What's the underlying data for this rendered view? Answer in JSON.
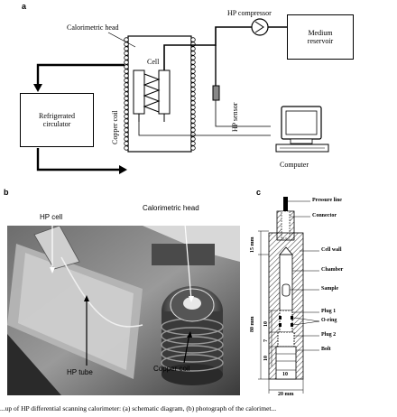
{
  "panel_a": {
    "letter": "a",
    "calorimetric_head": "Calorimetric head",
    "hp_compressor": "HP compressor",
    "medium_reservoir_line1": "Medium",
    "medium_reservoir_line2": "reservoir",
    "cell": "Cell",
    "hp_sensor": "HP sensor",
    "copper_coil": "Copper coil",
    "refrigerated_line1": "Refrigerated",
    "refrigerated_line2": "circulator",
    "computer": "Computer"
  },
  "panel_b": {
    "letter": "b",
    "hp_cell": "HP cell",
    "calorimetric_head": "Calorimetric head",
    "hp_tube": "HP tube",
    "copper_coil": "Copper coil"
  },
  "panel_c": {
    "letter": "c",
    "pressure_line": "Pressure line",
    "connector": "Connector",
    "cell_wall": "Cell wall",
    "chamber": "Chamber",
    "sample": "Sample",
    "plug1": "Plug 1",
    "oring": "O-ring",
    "plug2": "Plug 2",
    "bolt": "Bolt",
    "dim_15": "15 mm",
    "dim_80": "80 mm",
    "dim_10a": "10",
    "dim_7": "7",
    "dim_10b": "10",
    "dim_10c": "10",
    "dim_20": "20 mm"
  },
  "caption": "...up of HP differential scanning calorimeter: (a) schematic diagram, (b) photograph of the calorimet..."
}
